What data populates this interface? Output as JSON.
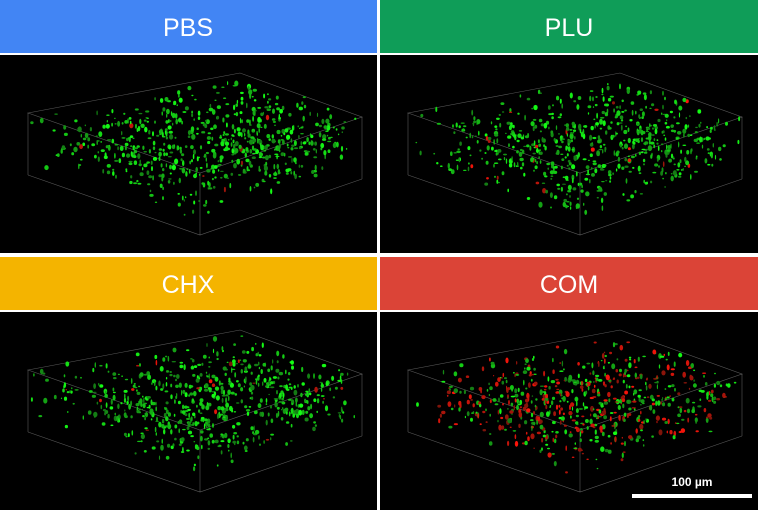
{
  "panels": [
    {
      "label": "PBS"
    },
    {
      "label": "PLU"
    },
    {
      "label": "CHX"
    },
    {
      "label": "COM"
    }
  ],
  "scale_bar": "100 µm"
}
